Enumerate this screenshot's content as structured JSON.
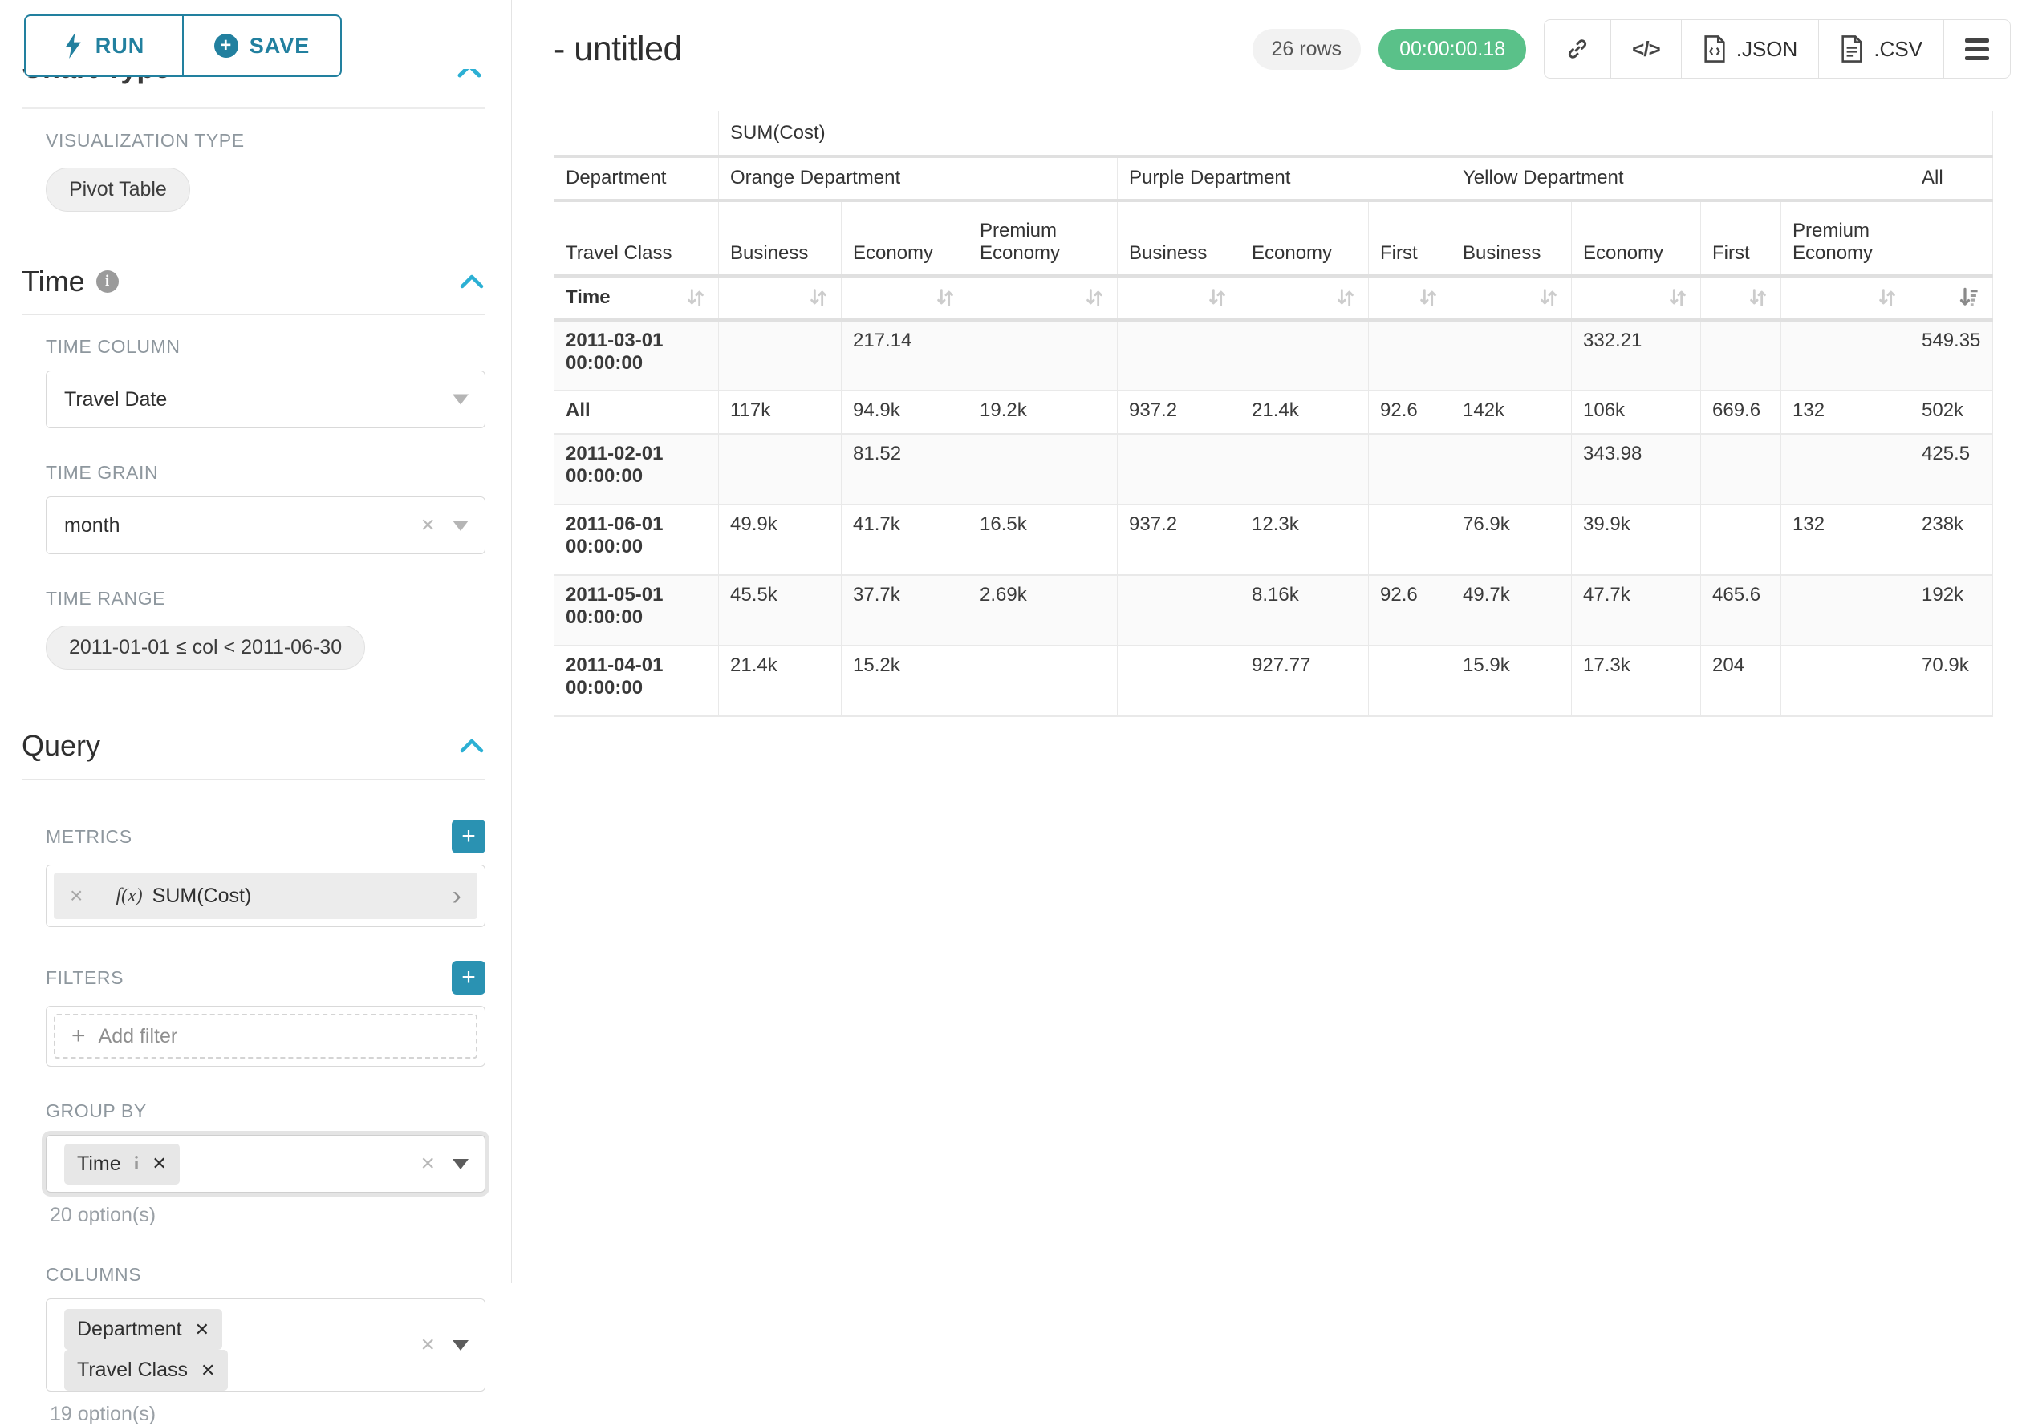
{
  "colors": {
    "accent": "#22809f",
    "accent_bright": "#2cb0d4",
    "success": "#5ac189"
  },
  "sidebar": {
    "run_label": "RUN",
    "save_label": "SAVE",
    "clipped_section_title": "Chart Type",
    "visualization_type_label": "VISUALIZATION TYPE",
    "visualization_type_value": "Pivot Table",
    "time_section_title": "Time",
    "time_column_label": "TIME COLUMN",
    "time_column_value": "Travel Date",
    "time_grain_label": "TIME GRAIN",
    "time_grain_value": "month",
    "time_range_label": "TIME RANGE",
    "time_range_value": "2011-01-01 ≤ col < 2011-06-30",
    "query_section_title": "Query",
    "metrics_label": "METRICS",
    "metric_fx": "f(x)",
    "metric_value": "SUM(Cost)",
    "filters_label": "FILTERS",
    "add_filter_label": "Add filter",
    "group_by_label": "GROUP BY",
    "group_by_tags": [
      {
        "label": "Time",
        "has_info": true
      }
    ],
    "group_by_hint": "20 option(s)",
    "columns_label": "COLUMNS",
    "columns_tags": [
      {
        "label": "Department",
        "has_info": false
      },
      {
        "label": "Travel Class",
        "has_info": false
      }
    ],
    "columns_hint": "19 option(s)"
  },
  "header": {
    "title": "- untitled",
    "rows_badge": "26 rows",
    "timer": "00:00:00.18",
    "json_label": ".JSON",
    "csv_label": ".CSV",
    "code_glyph": "</>"
  },
  "pivot": {
    "metric_header": "SUM(Cost)",
    "row_dim_label": "Department",
    "row_dim2_label": "Travel Class",
    "time_label": "Time",
    "col_groups": [
      {
        "label": "Orange Department",
        "cols": [
          "Business",
          "Economy",
          "Premium Economy"
        ]
      },
      {
        "label": "Purple Department",
        "cols": [
          "Business",
          "Economy",
          "First"
        ]
      },
      {
        "label": "Yellow Department",
        "cols": [
          "Business",
          "Economy",
          "First",
          "Premium Economy"
        ]
      }
    ],
    "all_label": "All",
    "rows": [
      {
        "label": "2011-03-01 00:00:00",
        "values": [
          "",
          "217.14",
          "",
          "",
          "",
          "",
          "",
          "332.21",
          "",
          "",
          "549.35"
        ]
      },
      {
        "label": "All",
        "values": [
          "117k",
          "94.9k",
          "19.2k",
          "937.2",
          "21.4k",
          "92.6",
          "142k",
          "106k",
          "669.6",
          "132",
          "502k"
        ]
      },
      {
        "label": "2011-02-01 00:00:00",
        "values": [
          "",
          "81.52",
          "",
          "",
          "",
          "",
          "",
          "343.98",
          "",
          "",
          "425.5"
        ]
      },
      {
        "label": "2011-06-01 00:00:00",
        "values": [
          "49.9k",
          "41.7k",
          "16.5k",
          "937.2",
          "12.3k",
          "",
          "76.9k",
          "39.9k",
          "",
          "132",
          "238k"
        ]
      },
      {
        "label": "2011-05-01 00:00:00",
        "values": [
          "45.5k",
          "37.7k",
          "2.69k",
          "",
          "8.16k",
          "92.6",
          "49.7k",
          "47.7k",
          "465.6",
          "",
          "192k"
        ]
      },
      {
        "label": "2011-04-01 00:00:00",
        "values": [
          "21.4k",
          "15.2k",
          "",
          "",
          "927.77",
          "",
          "15.9k",
          "17.3k",
          "204",
          "",
          "70.9k"
        ]
      }
    ],
    "sorted_column": "All",
    "sort_direction": "descending"
  }
}
